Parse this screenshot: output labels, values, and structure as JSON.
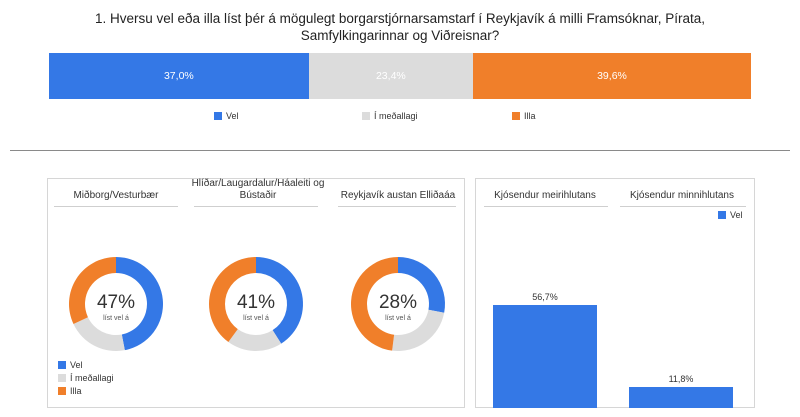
{
  "main": {
    "title": "1. Hversu vel eða illa líst þér á mögulegt borgarstjórnarsamstarf í Reykjavík á milli Framsóknar, Pírata, Samfylkingarinnar og Viðreisnar?"
  },
  "colors": {
    "vel": "#3478e6",
    "medallagi": "#dcdcdc",
    "illa": "#f07f2a"
  },
  "legend": {
    "vel": "Vel",
    "medallagi": "Í meðallagi",
    "illa": "Illa"
  },
  "chart_data": [
    {
      "type": "bar",
      "orientation": "horizontal-stacked",
      "categories": [
        "Vel",
        "Í meðallagi",
        "Illa"
      ],
      "values": [
        37.0,
        23.4,
        39.6
      ],
      "value_labels": [
        "37,0%",
        "23,4%",
        "39,6%"
      ],
      "legend_position": "bottom"
    },
    {
      "type": "pie",
      "donut": true,
      "panels": [
        {
          "title": "Miðborg/Vesturbær",
          "center_pct": "47%",
          "center_label": "líst vel á",
          "values": [
            47,
            21,
            32
          ]
        },
        {
          "title": "Hlíðar/Laugardalur/Háaleiti og Bústaðir",
          "center_pct": "41%",
          "center_label": "líst vel á",
          "values": [
            41,
            19,
            40
          ]
        },
        {
          "title": "Reykjavík austan Elliðaáa",
          "center_pct": "28%",
          "center_label": "líst vel á",
          "values": [
            28,
            24,
            48
          ]
        }
      ],
      "categories": [
        "Vel",
        "Í meðallagi",
        "Illa"
      ],
      "legend_position": "bottom-left"
    },
    {
      "type": "bar",
      "categories": [
        "Kjósendur meirihlutans",
        "Kjósendur minnihlutans"
      ],
      "series": [
        {
          "name": "Vel",
          "values": [
            56.7,
            11.8
          ]
        }
      ],
      "value_labels": [
        "56,7%",
        "11,8%"
      ],
      "ylim": [
        0,
        100
      ],
      "legend_position": "top-right"
    }
  ]
}
